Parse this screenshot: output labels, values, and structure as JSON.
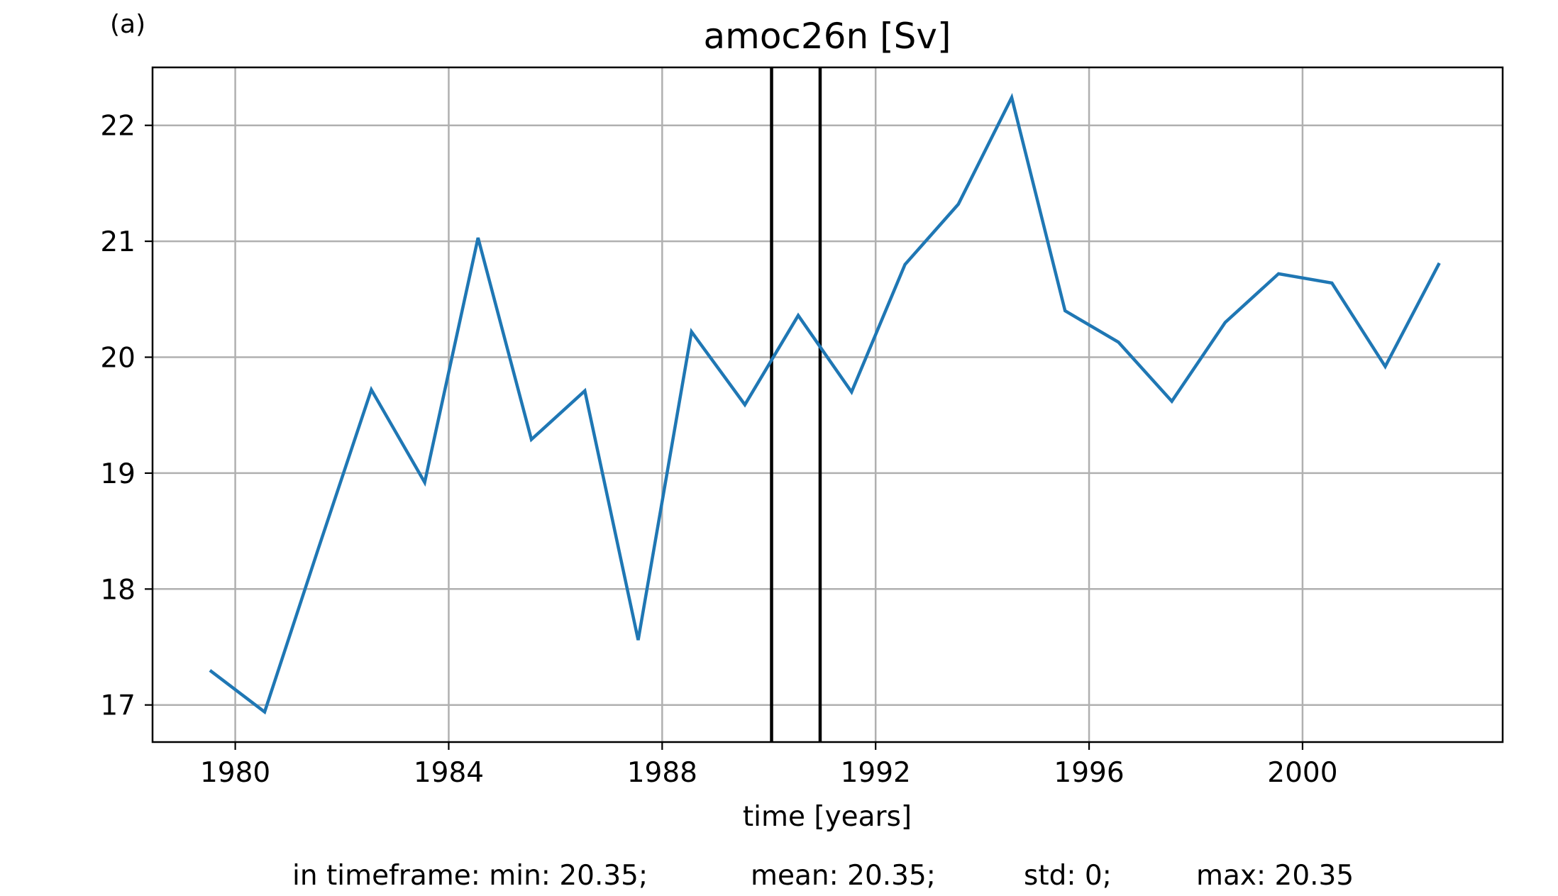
{
  "chart_data": {
    "type": "line",
    "panel_label": "(a)",
    "title": "amoc26n [Sv]",
    "xlabel": "time [years]",
    "ylabel": "",
    "xlim": [
      1978.45,
      2003.75
    ],
    "ylim": [
      16.68,
      22.5
    ],
    "grid": true,
    "x_ticks": [
      1980,
      1984,
      1988,
      1992,
      1996,
      2000
    ],
    "x_tick_labels": [
      "1980",
      "1984",
      "1988",
      "1992",
      "1996",
      "2000"
    ],
    "y_ticks": [
      17,
      18,
      19,
      20,
      21,
      22
    ],
    "y_tick_labels": [
      "17",
      "18",
      "19",
      "20",
      "21",
      "22"
    ],
    "series": [
      {
        "color": "#1f77b4",
        "x": [
          1979.55,
          1980.55,
          1981.55,
          1982.55,
          1983.55,
          1984.55,
          1985.55,
          1986.55,
          1987.55,
          1988.55,
          1989.55,
          1990.55,
          1991.55,
          1992.55,
          1993.55,
          1994.55,
          1995.55,
          1996.55,
          1997.55,
          1998.55,
          1999.55,
          2000.55,
          2001.55,
          2002.55
        ],
        "y": [
          17.29,
          16.94,
          18.34,
          19.72,
          18.92,
          21.03,
          19.29,
          19.71,
          17.56,
          20.22,
          19.59,
          20.36,
          19.7,
          20.8,
          21.32,
          22.24,
          20.4,
          20.13,
          19.62,
          20.3,
          20.72,
          20.64,
          19.92,
          20.8
        ]
      }
    ],
    "vertical_lines": {
      "color": "#000000",
      "x": [
        1990.05,
        1990.96
      ]
    },
    "stats": {
      "min": "in timeframe: min: 20.35;",
      "mean": "mean: 20.35;",
      "std": "std: 0;",
      "max": "max: 20.35"
    }
  }
}
